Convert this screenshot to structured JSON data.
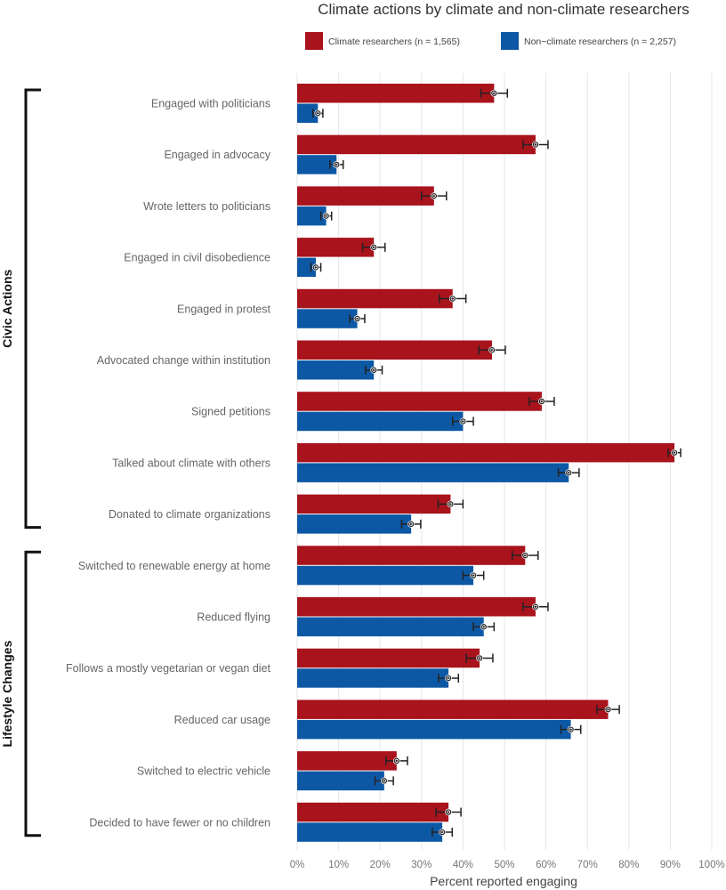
{
  "chart_data": {
    "type": "bar",
    "orientation": "horizontal",
    "title": "Climate actions by climate and non-climate researchers",
    "xlabel": "Percent reported engaging",
    "ylabel": "",
    "xlim": [
      0,
      100
    ],
    "x_ticks": [
      "0%",
      "10%",
      "20%",
      "30%",
      "40%",
      "50%",
      "60%",
      "70%",
      "80%",
      "90%",
      "100%"
    ],
    "grid": true,
    "legend_position": "top",
    "colors": {
      "climate": "#a8131c",
      "non_climate": "#0d58a5",
      "error_bar": "#222222"
    },
    "groups": [
      {
        "label": "Civic Actions",
        "first_index": 0,
        "last_index": 8
      },
      {
        "label": "Lifestyle Changes",
        "first_index": 9,
        "last_index": 14
      }
    ],
    "categories": [
      "Engaged with politicians",
      "Engaged in advocacy",
      "Wrote letters to politicians",
      "Engaged in civil disobedience",
      "Engaged in protest",
      "Advocated change within institution",
      "Signed petitions",
      "Talked about climate with others",
      "Donated to climate organizations",
      "Switched to renewable energy at home",
      "Reduced flying",
      "Follows a mostly vegetarian or vegan diet",
      "Reduced car usage",
      "Switched to electric vehicle",
      "Decided to have fewer or no children"
    ],
    "series": [
      {
        "name": "Climate researchers (n = 1,565)",
        "key": "climate",
        "values": [
          47.5,
          57.5,
          33,
          18.5,
          37.5,
          47,
          59,
          91,
          37,
          55,
          57.5,
          44,
          75,
          24,
          36.5
        ],
        "err": [
          3.2,
          3.0,
          3.0,
          2.7,
          3.2,
          3.2,
          3.0,
          1.5,
          3.0,
          3.1,
          3.0,
          3.2,
          2.7,
          2.6,
          3.0
        ]
      },
      {
        "name": "Non-climate researchers (n = 2,257)",
        "key": "non_climate",
        "values": [
          5,
          9.5,
          7,
          4.5,
          14.5,
          18.5,
          40,
          65.5,
          27.5,
          42.5,
          45,
          36.5,
          66,
          21,
          35
        ],
        "err": [
          1.2,
          1.6,
          1.3,
          1.2,
          1.8,
          2.0,
          2.5,
          2.5,
          2.3,
          2.5,
          2.5,
          2.4,
          2.4,
          2.2,
          2.4
        ]
      }
    ]
  }
}
